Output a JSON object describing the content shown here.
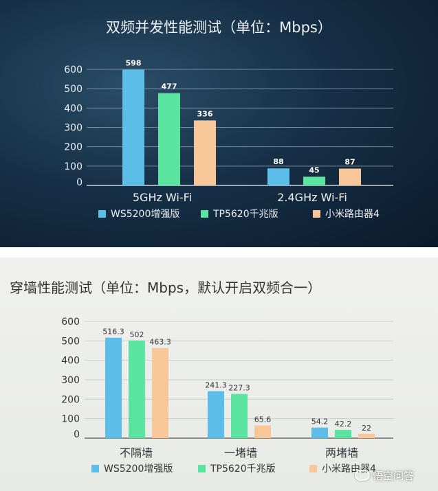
{
  "chart_data": [
    {
      "type": "bar",
      "title": "双频并发性能测试（单位：Mbps）",
      "categories": [
        "5GHz  Wi-Fi",
        "2.4GHz  Wi-Fi"
      ],
      "series": [
        {
          "name": "WS5200增强版",
          "values": [
            598,
            88
          ],
          "labels": [
            "598",
            "88"
          ]
        },
        {
          "name": "TP5620千兆版",
          "values": [
            477,
            45
          ],
          "labels": [
            "477",
            "45"
          ]
        },
        {
          "name": "小米路由器4",
          "values": [
            336,
            87
          ],
          "labels": [
            "336",
            "87"
          ]
        }
      ],
      "yticks": [
        0,
        100,
        200,
        300,
        400,
        500,
        600
      ],
      "ylim": [
        0,
        600
      ],
      "grid": true,
      "legend_position": "bottom"
    },
    {
      "type": "bar",
      "title": "穿墙性能测试（单位：Mbps，默认开启双频合一）",
      "categories": [
        "不隔墙",
        "一堵墙",
        "两堵墙"
      ],
      "series": [
        {
          "name": "WS5200增强版",
          "values": [
            516.3,
            241.3,
            54.2
          ],
          "labels": [
            "516.3",
            "241.3",
            "54.2"
          ]
        },
        {
          "name": "TP5620千兆版",
          "values": [
            502,
            227.3,
            42.2
          ],
          "labels": [
            "502",
            "227.3",
            "42.2"
          ]
        },
        {
          "name": "小米路由器4",
          "values": [
            463.3,
            65.6,
            22
          ],
          "labels": [
            "463.3",
            "65.6",
            "22"
          ]
        }
      ],
      "yticks": [
        0,
        100,
        200,
        300,
        400,
        500,
        600
      ],
      "ylim": [
        0,
        600
      ],
      "grid": true,
      "legend_position": "bottom"
    }
  ],
  "colors": {
    "ws5200": "#5bbde8",
    "tp5620": "#5be3a0",
    "mi4": "#f7c79a"
  },
  "watermark": "悟空问答"
}
